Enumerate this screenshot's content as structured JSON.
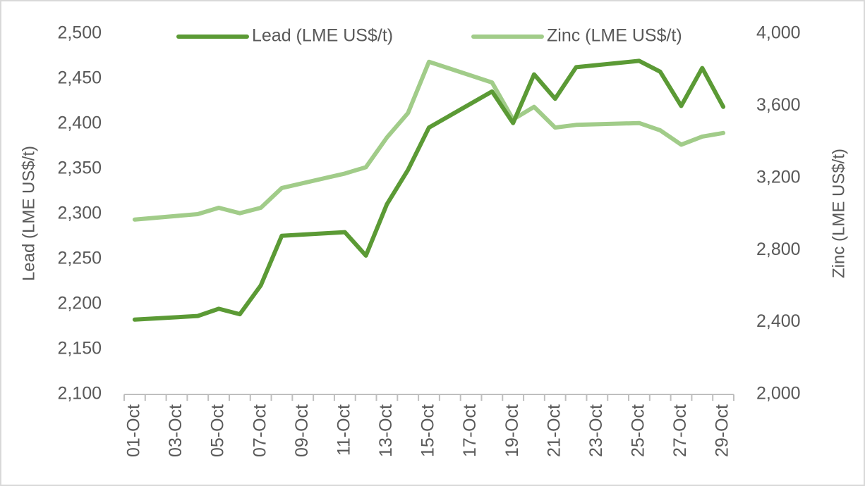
{
  "chart_data": {
    "type": "line",
    "x": [
      "01-Oct",
      "02-Oct",
      "03-Oct",
      "04-Oct",
      "05-Oct",
      "06-Oct",
      "07-Oct",
      "08-Oct",
      "09-Oct",
      "10-Oct",
      "11-Oct",
      "12-Oct",
      "13-Oct",
      "14-Oct",
      "15-Oct",
      "16-Oct",
      "17-Oct",
      "18-Oct",
      "19-Oct",
      "20-Oct",
      "21-Oct",
      "22-Oct",
      "23-Oct",
      "24-Oct",
      "25-Oct",
      "26-Oct",
      "27-Oct",
      "28-Oct",
      "29-Oct"
    ],
    "x_tick_labels": [
      "01-Oct",
      "03-Oct",
      "05-Oct",
      "07-Oct",
      "09-Oct",
      "11-Oct",
      "13-Oct",
      "15-Oct",
      "17-Oct",
      "19-Oct",
      "21-Oct",
      "23-Oct",
      "25-Oct",
      "27-Oct",
      "29-Oct"
    ],
    "series": [
      {
        "name": "Lead (LME US$/t)",
        "axis": "left",
        "color": "#5b9a35",
        "values": [
          2183,
          null,
          null,
          2187,
          2195,
          2189,
          2221,
          2276,
          null,
          null,
          2280,
          2254,
          2311,
          2349,
          2396,
          null,
          null,
          2436,
          2401,
          2455,
          2428,
          2463,
          null,
          null,
          2470,
          2458,
          2420,
          2462,
          2419
        ]
      },
      {
        "name": "Zinc (LME US$/t)",
        "axis": "right",
        "color": "#a1cc89",
        "values": [
          2970,
          null,
          null,
          3000,
          3035,
          3005,
          3035,
          3145,
          null,
          null,
          3225,
          3260,
          3425,
          3560,
          3845,
          null,
          null,
          3730,
          3525,
          3595,
          3480,
          3495,
          null,
          null,
          3505,
          3465,
          3385,
          3430,
          3450
        ]
      }
    ],
    "y_left": {
      "label": "Lead (LME US$/t)",
      "range": [
        2100,
        2500
      ],
      "ticks": [
        "2,100",
        "2,150",
        "2,200",
        "2,250",
        "2,300",
        "2,350",
        "2,400",
        "2,450",
        "2,500"
      ]
    },
    "y_right": {
      "label": "Zinc (LME US$/t)",
      "range": [
        2000,
        4000
      ],
      "ticks": [
        "2,000",
        "2,400",
        "2,800",
        "3,200",
        "3,600",
        "4,000"
      ]
    },
    "legend": {
      "placement": "top-center"
    },
    "grid": false
  }
}
